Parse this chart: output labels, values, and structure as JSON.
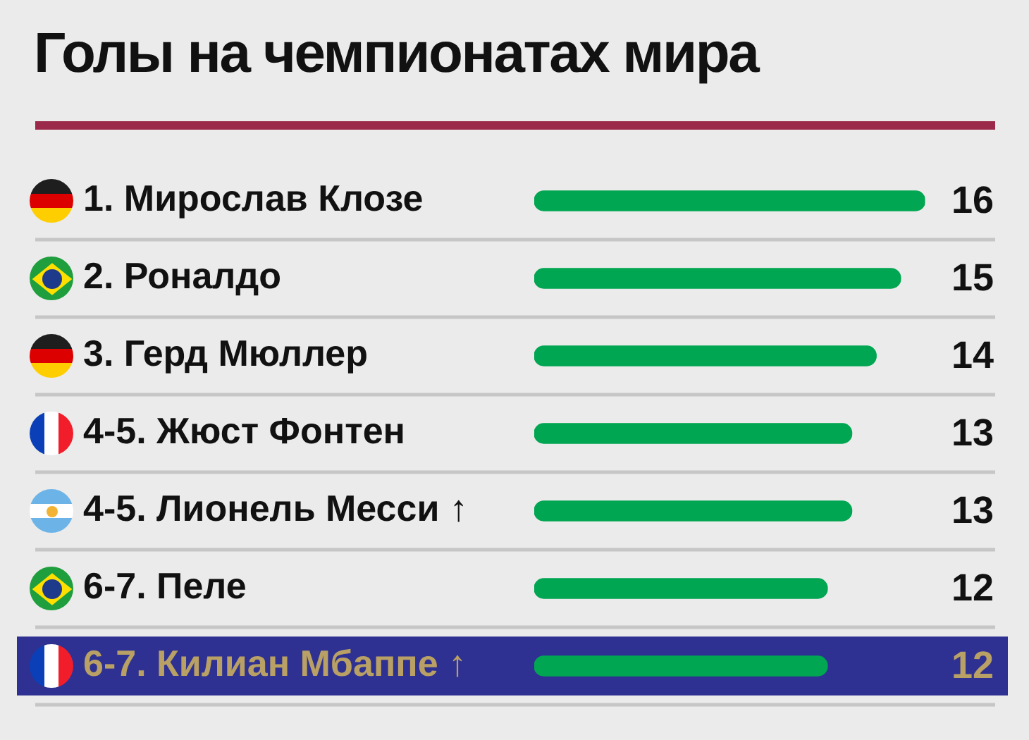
{
  "chart_data": {
    "type": "bar",
    "orientation": "horizontal",
    "title": "Голы на чемпионатах мира",
    "categories": [
      "1. Мирослав Клозе",
      "2. Роналдо",
      "3. Герд Мюллер",
      "4-5. Жюст Фонтен",
      "4-5. Лионель Месси ↑",
      "6-7. Пеле",
      "6-7. Килиан Мбаппе ↑"
    ],
    "values": [
      16,
      15,
      14,
      13,
      13,
      12,
      12
    ],
    "color": "#00a651",
    "data_labels": true,
    "tick_labels": "y",
    "grid": "y",
    "legend": false,
    "bands": [
      {
        "axis": "y",
        "from": "6-7. Килиан Мбаппе ↑",
        "to": "6-7. Килиан Мбаппе ↑",
        "color": "#2e3191"
      }
    ]
  }
}
